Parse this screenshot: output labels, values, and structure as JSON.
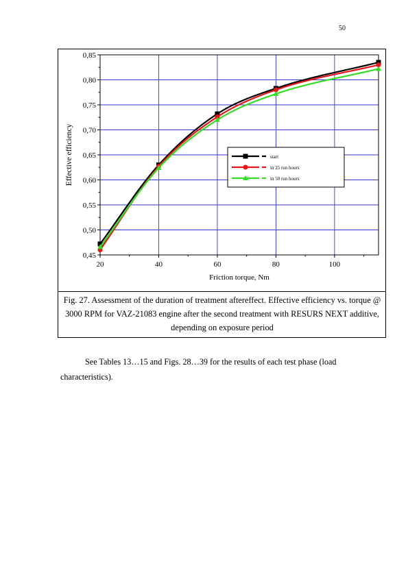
{
  "page_number": "50",
  "caption": "Fig. 27. Assessment of the duration of treatment aftereffect. Effective efficiency vs. torque @ 3000 RPM for VAZ-21083 engine after the second treatment with RESURS NEXT additive, depending on exposure period",
  "body_text": "See Tables 13…15 and Figs. 28…39 for the results of each test phase (load characteristics).",
  "chart_data": {
    "type": "line",
    "xlabel": "Friction torque, Nm",
    "ylabel": "Effective efficiency",
    "xlim": [
      20,
      115
    ],
    "ylim": [
      0.45,
      0.85
    ],
    "x_ticks": [
      "20",
      "40",
      "60",
      "80",
      "100"
    ],
    "y_ticks": [
      "0,45",
      "0,50",
      "0,55",
      "0,60",
      "0,65",
      "0,70",
      "0,75",
      "0,80",
      "0,85"
    ],
    "grid": true,
    "legend_position": "center-right",
    "series": [
      {
        "name": "start",
        "color": "#000000",
        "marker": "square",
        "x": [
          20,
          40,
          60,
          80,
          115
        ],
        "y": [
          0.472,
          0.63,
          0.732,
          0.783,
          0.835
        ]
      },
      {
        "name": "in 25 run hours",
        "color": "#e8141a",
        "marker": "circle",
        "x": [
          20,
          40,
          60,
          80,
          115
        ],
        "y": [
          0.46,
          0.627,
          0.726,
          0.78,
          0.83
        ]
      },
      {
        "name": "in 50 run hours",
        "color": "#33dd22",
        "marker": "triangle",
        "x": [
          20,
          40,
          60,
          80,
          115
        ],
        "y": [
          0.466,
          0.624,
          0.72,
          0.772,
          0.822
        ]
      }
    ]
  }
}
